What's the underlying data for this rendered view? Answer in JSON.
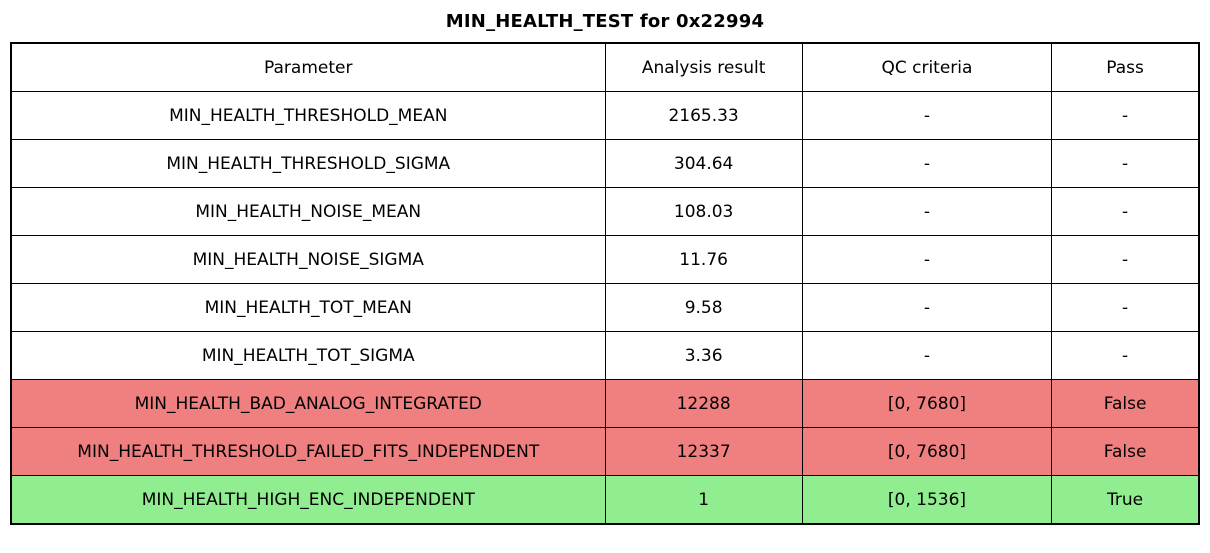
{
  "title": "MIN_HEALTH_TEST for 0x22994",
  "colors": {
    "fail_bg": "#f08080",
    "pass_bg": "#90ee90",
    "border": "#000000",
    "text": "#000000"
  },
  "chart_data": {
    "type": "table",
    "title": "MIN_HEALTH_TEST for 0x22994",
    "columns": [
      "Parameter",
      "Analysis result",
      "QC criteria",
      "Pass"
    ],
    "rows": [
      [
        "MIN_HEALTH_THRESHOLD_MEAN",
        "2165.33",
        "-",
        "-"
      ],
      [
        "MIN_HEALTH_THRESHOLD_SIGMA",
        "304.64",
        "-",
        "-"
      ],
      [
        "MIN_HEALTH_NOISE_MEAN",
        "108.03",
        "-",
        "-"
      ],
      [
        "MIN_HEALTH_NOISE_SIGMA",
        "11.76",
        "-",
        "-"
      ],
      [
        "MIN_HEALTH_TOT_MEAN",
        "9.58",
        "-",
        "-"
      ],
      [
        "MIN_HEALTH_TOT_SIGMA",
        "3.36",
        "-",
        "-"
      ],
      [
        "MIN_HEALTH_BAD_ANALOG_INTEGRATED",
        "12288",
        "[0, 7680]",
        "False"
      ],
      [
        "MIN_HEALTH_THRESHOLD_FAILED_FITS_INDEPENDENT",
        "12337",
        "[0, 7680]",
        "False"
      ],
      [
        "MIN_HEALTH_HIGH_ENC_INDEPENDENT",
        "1",
        "[0, 1536]",
        "True"
      ]
    ],
    "row_status": [
      "none",
      "none",
      "none",
      "none",
      "none",
      "none",
      "fail",
      "fail",
      "pass"
    ],
    "legend_position": "none",
    "grid": "full-cell-borders"
  }
}
